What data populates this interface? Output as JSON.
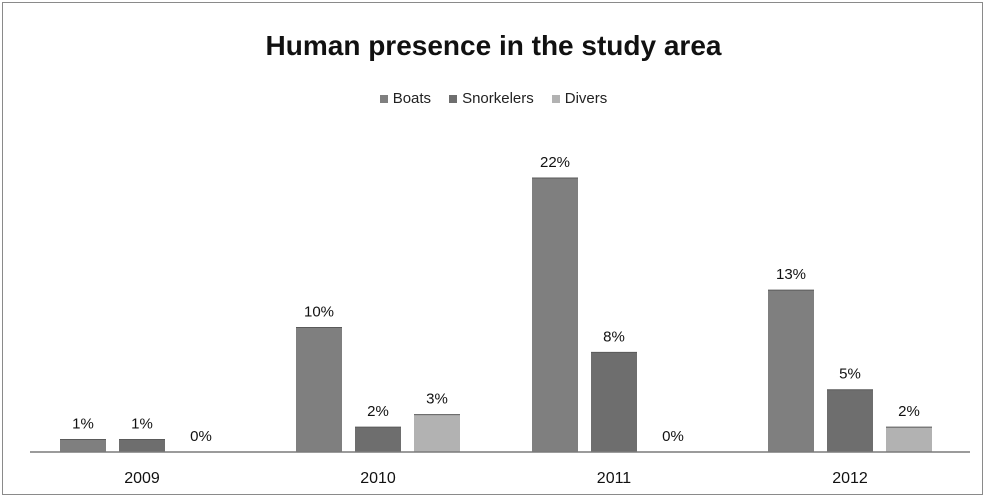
{
  "chart_data": {
    "type": "bar",
    "title": "Human presence in the study area",
    "xlabel": "",
    "ylabel": "",
    "categories": [
      "2009",
      "2010",
      "2011",
      "2012"
    ],
    "series": [
      {
        "name": "Boats",
        "color": "#7f7f7f",
        "values": [
          1,
          10,
          22,
          13
        ],
        "labels": [
          "1%",
          "10%",
          "22%",
          "13%"
        ]
      },
      {
        "name": "Snorkelers",
        "color": "#6e6e6e",
        "values": [
          1,
          2,
          8,
          5
        ],
        "labels": [
          "1%",
          "2%",
          "8%",
          "5%"
        ]
      },
      {
        "name": "Divers",
        "color": "#b2b2b2",
        "values": [
          0,
          3,
          0,
          2
        ],
        "labels": [
          "0%",
          "3%",
          "0%",
          "2%"
        ]
      }
    ],
    "ylim": [
      0,
      22
    ],
    "grid": false,
    "legend_position": "top"
  }
}
